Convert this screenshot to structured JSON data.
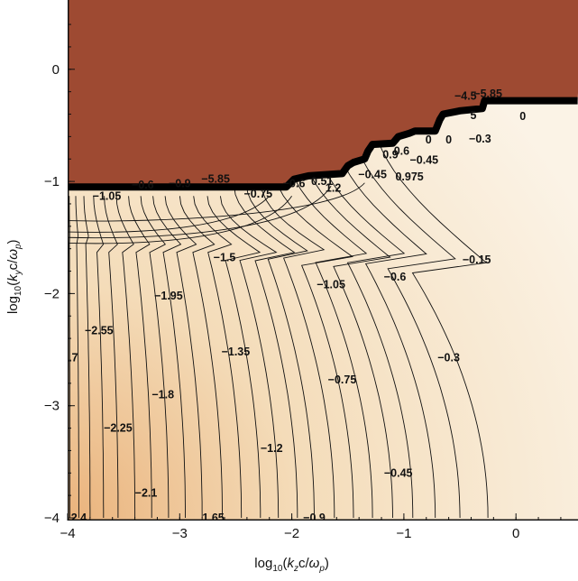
{
  "chart_data": {
    "type": "contour",
    "title": "",
    "xlabel": "log10(kz c/ωp)",
    "ylabel": "log10(ky c/ωp)",
    "xlabel_parts": {
      "pre": "log",
      "sub": "10",
      "open": "(",
      "var": "k",
      "varsub": "z",
      "mid": "c/",
      "omega": "ω",
      "omegasub": "p",
      "close": ")"
    },
    "ylabel_parts": {
      "pre": "log",
      "sub": "10",
      "open": "(",
      "var": "k",
      "varsub": "y",
      "mid": "c/",
      "omega": "ω",
      "omegasub": "p",
      "close": ")"
    },
    "xlim": [
      -4,
      0.55
    ],
    "ylim": [
      -4,
      0.55
    ],
    "x_ticks": [
      {
        "value": -4,
        "label": "−4"
      },
      {
        "value": -3,
        "label": "−3"
      },
      {
        "value": -2,
        "label": "−2"
      },
      {
        "value": -1,
        "label": "−1"
      },
      {
        "value": 0,
        "label": "0"
      }
    ],
    "y_ticks": [
      {
        "value": 0,
        "label": "0"
      },
      {
        "value": -1,
        "label": "−1"
      },
      {
        "value": -2,
        "label": "−2"
      },
      {
        "value": -3,
        "label": "−3"
      },
      {
        "value": -4,
        "label": "−4"
      }
    ],
    "colors": {
      "saturated_region": "#9e4a32",
      "light": "#fbf3e6",
      "mid": "#f4dcb9",
      "dark": "#eab37c",
      "contour_line": "#111111",
      "boundary": "#000000"
    },
    "saturated_boundary": [
      [
        -4.0,
        -1.05
      ],
      [
        -2.05,
        -1.05
      ],
      [
        -1.98,
        -0.98
      ],
      [
        -1.85,
        -0.95
      ],
      [
        -1.55,
        -0.93
      ],
      [
        -1.5,
        -0.86
      ],
      [
        -1.45,
        -0.83
      ],
      [
        -1.35,
        -0.8
      ],
      [
        -1.32,
        -0.73
      ],
      [
        -1.28,
        -0.67
      ],
      [
        -1.1,
        -0.66
      ],
      [
        -1.05,
        -0.6
      ],
      [
        -0.95,
        -0.57
      ],
      [
        -0.9,
        -0.55
      ],
      [
        -0.72,
        -0.55
      ],
      [
        -0.68,
        -0.45
      ],
      [
        -0.65,
        -0.4
      ],
      [
        -0.5,
        -0.37
      ],
      [
        -0.3,
        -0.35
      ],
      [
        -0.28,
        -0.28
      ],
      [
        0.55,
        -0.28
      ]
    ],
    "contour_labels": [
      {
        "x": -3.65,
        "y": -1.13,
        "text": "−1.05"
      },
      {
        "x": -3.33,
        "y": -1.03,
        "text": "−0.6"
      },
      {
        "x": -3.0,
        "y": -1.02,
        "text": "−0.9"
      },
      {
        "x": -2.68,
        "y": -0.98,
        "text": "−5.85"
      },
      {
        "x": -2.3,
        "y": -1.11,
        "text": "−0.75"
      },
      {
        "x": -1.98,
        "y": -1.02,
        "text": "−0.6"
      },
      {
        "x": -1.73,
        "y": -1.0,
        "text": "0.51"
      },
      {
        "x": -1.63,
        "y": -1.06,
        "text": "1.2"
      },
      {
        "x": -1.28,
        "y": -0.94,
        "text": "−0.45"
      },
      {
        "x": -0.95,
        "y": -0.96,
        "text": "0.975"
      },
      {
        "x": -1.12,
        "y": -0.76,
        "text": "0.9"
      },
      {
        "x": -1.02,
        "y": -0.73,
        "text": "0.6"
      },
      {
        "x": -0.82,
        "y": -0.81,
        "text": "−0.45"
      },
      {
        "x": -0.78,
        "y": -0.63,
        "text": "0"
      },
      {
        "x": -0.6,
        "y": -0.63,
        "text": "0"
      },
      {
        "x": -0.32,
        "y": -0.62,
        "text": "−0.3"
      },
      {
        "x": -0.45,
        "y": -0.24,
        "text": "−4.5"
      },
      {
        "x": -0.25,
        "y": -0.22,
        "text": "−5.85"
      },
      {
        "x": -0.38,
        "y": -0.41,
        "text": "5"
      },
      {
        "x": 0.06,
        "y": -0.42,
        "text": "0"
      },
      {
        "x": -2.6,
        "y": -1.68,
        "text": "−1.5"
      },
      {
        "x": -1.65,
        "y": -1.92,
        "text": "−1.05"
      },
      {
        "x": -1.08,
        "y": -1.85,
        "text": "−0.6"
      },
      {
        "x": -0.35,
        "y": -1.7,
        "text": "−0.15"
      },
      {
        "x": -3.1,
        "y": -2.02,
        "text": "−1.95"
      },
      {
        "x": -3.72,
        "y": -2.33,
        "text": "−2.55"
      },
      {
        "x": -3.95,
        "y": -2.57,
        "text": ".7"
      },
      {
        "x": -2.5,
        "y": -2.52,
        "text": "−1.35"
      },
      {
        "x": -0.6,
        "y": -2.57,
        "text": "−0.3"
      },
      {
        "x": -3.15,
        "y": -2.9,
        "text": "−1.8"
      },
      {
        "x": -1.55,
        "y": -2.77,
        "text": "−0.75"
      },
      {
        "x": -3.55,
        "y": -3.2,
        "text": "−2.25"
      },
      {
        "x": -2.18,
        "y": -3.38,
        "text": "−1.2"
      },
      {
        "x": -1.05,
        "y": -3.6,
        "text": "−0.45"
      },
      {
        "x": -3.3,
        "y": -3.78,
        "text": "−2.1"
      },
      {
        "x": -2.7,
        "y": -4.0,
        "text": "1.65"
      },
      {
        "x": -1.8,
        "y": -4.0,
        "text": "−0.9"
      },
      {
        "x": -3.9,
        "y": -4.0,
        "text": "2.4"
      }
    ]
  }
}
